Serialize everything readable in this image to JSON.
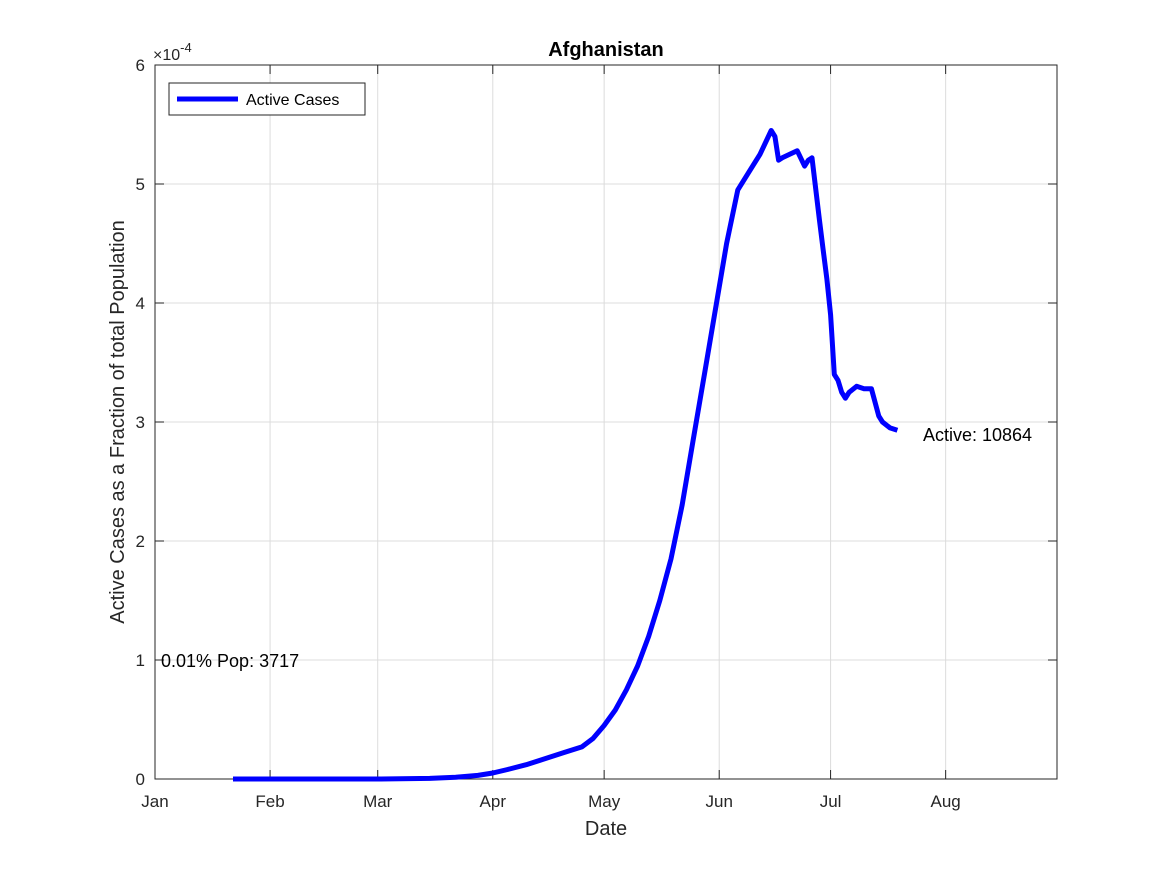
{
  "chart_data": {
    "type": "line",
    "title": "Afghanistan",
    "xlabel": "Date",
    "ylabel": "Active Cases as a Fraction of total Population",
    "y_exponent_label": "×10",
    "y_exponent_power": "-4",
    "y_scale_factor": 0.0001,
    "xlim": [
      "2020-01-01",
      "2020-08-31"
    ],
    "ylim": [
      0,
      6
    ],
    "x_ticks": [
      "2020-01-01",
      "2020-02-01",
      "2020-03-01",
      "2020-04-01",
      "2020-05-01",
      "2020-06-01",
      "2020-07-01",
      "2020-08-01"
    ],
    "x_tick_labels": [
      "Jan",
      "Feb",
      "Mar",
      "Apr",
      "May",
      "Jun",
      "Jul",
      "Aug"
    ],
    "y_ticks": [
      0,
      1,
      2,
      3,
      4,
      5,
      6
    ],
    "y_tick_labels": [
      "0",
      "1",
      "2",
      "3",
      "4",
      "5",
      "6"
    ],
    "grid": true,
    "legend_position": "top-left",
    "series": [
      {
        "name": "Active Cases",
        "color": "#0000ff",
        "x": [
          "2020-01-22",
          "2020-02-01",
          "2020-02-15",
          "2020-03-01",
          "2020-03-15",
          "2020-03-22",
          "2020-03-28",
          "2020-04-01",
          "2020-04-05",
          "2020-04-10",
          "2020-04-15",
          "2020-04-20",
          "2020-04-25",
          "2020-04-28",
          "2020-05-01",
          "2020-05-04",
          "2020-05-07",
          "2020-05-10",
          "2020-05-13",
          "2020-05-16",
          "2020-05-19",
          "2020-05-22",
          "2020-05-25",
          "2020-05-28",
          "2020-05-31",
          "2020-06-03",
          "2020-06-06",
          "2020-06-09",
          "2020-06-12",
          "2020-06-15",
          "2020-06-16",
          "2020-06-17",
          "2020-06-18",
          "2020-06-20",
          "2020-06-22",
          "2020-06-24",
          "2020-06-25",
          "2020-06-26",
          "2020-06-28",
          "2020-06-29",
          "2020-06-30",
          "2020-07-01",
          "2020-07-02",
          "2020-07-03",
          "2020-07-04",
          "2020-07-05",
          "2020-07-06",
          "2020-07-08",
          "2020-07-10",
          "2020-07-12",
          "2020-07-14",
          "2020-07-15",
          "2020-07-17",
          "2020-07-19"
        ],
        "y": [
          0,
          0,
          0,
          0,
          0.005,
          0.015,
          0.03,
          0.05,
          0.08,
          0.12,
          0.17,
          0.22,
          0.27,
          0.34,
          0.45,
          0.58,
          0.75,
          0.95,
          1.2,
          1.5,
          1.85,
          2.3,
          2.85,
          3.4,
          3.95,
          4.5,
          4.95,
          5.1,
          5.25,
          5.45,
          5.4,
          5.2,
          5.22,
          5.25,
          5.28,
          5.15,
          5.2,
          5.22,
          4.7,
          4.45,
          4.2,
          3.9,
          3.4,
          3.35,
          3.25,
          3.2,
          3.25,
          3.3,
          3.28,
          3.28,
          3.05,
          3.0,
          2.95,
          2.93
        ],
        "end_label": "Active: 10864"
      }
    ],
    "annotations": [
      {
        "text": "0.01% Pop: 3717",
        "x": "2020-01-01",
        "y": 1
      },
      {
        "text": "Active: 10864",
        "x": "2020-07-19",
        "y": 2.93
      }
    ]
  }
}
